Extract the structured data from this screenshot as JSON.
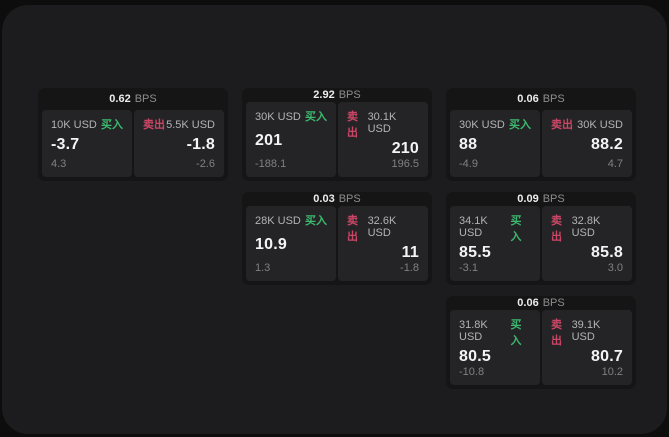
{
  "colors": {
    "buy_green": "#3cb96e",
    "sell_red": "#cc4766",
    "panel_bg": "#1c1c1e",
    "card_bg": "#151516",
    "pane_bg": "#242426"
  },
  "labels": {
    "buy": "买入",
    "sell": "卖出",
    "bps": "BPS"
  },
  "cards": [
    {
      "bps": "0.62",
      "buy": {
        "amount": "10K USD",
        "value": "-3.7",
        "sub": "4.3"
      },
      "sell": {
        "amount": "5.5K USD",
        "value": "-1.8",
        "sub": "-2.6"
      }
    },
    {
      "bps": "2.92",
      "buy": {
        "amount": "30K USD",
        "value": "201",
        "sub": "-188.1"
      },
      "sell": {
        "amount": "30.1K USD",
        "value": "210",
        "sub": "196.5"
      }
    },
    {
      "bps": "0.06",
      "buy": {
        "amount": "30K USD",
        "value": "88",
        "sub": "-4.9"
      },
      "sell": {
        "amount": "30K USD",
        "value": "88.2",
        "sub": "4.7"
      }
    },
    {
      "bps": "0.03",
      "buy": {
        "amount": "28K USD",
        "value": "10.9",
        "sub": "1.3"
      },
      "sell": {
        "amount": "32.6K USD",
        "value": "11",
        "sub": "-1.8"
      }
    },
    {
      "bps": "0.09",
      "buy": {
        "amount": "34.1K USD",
        "value": "85.5",
        "sub": "-3.1"
      },
      "sell": {
        "amount": "32.8K USD",
        "value": "85.8",
        "sub": "3.0"
      }
    },
    {
      "bps": "0.06",
      "buy": {
        "amount": "31.8K USD",
        "value": "80.5",
        "sub": "-10.8"
      },
      "sell": {
        "amount": "39.1K USD",
        "value": "80.7",
        "sub": "10.2"
      }
    }
  ]
}
